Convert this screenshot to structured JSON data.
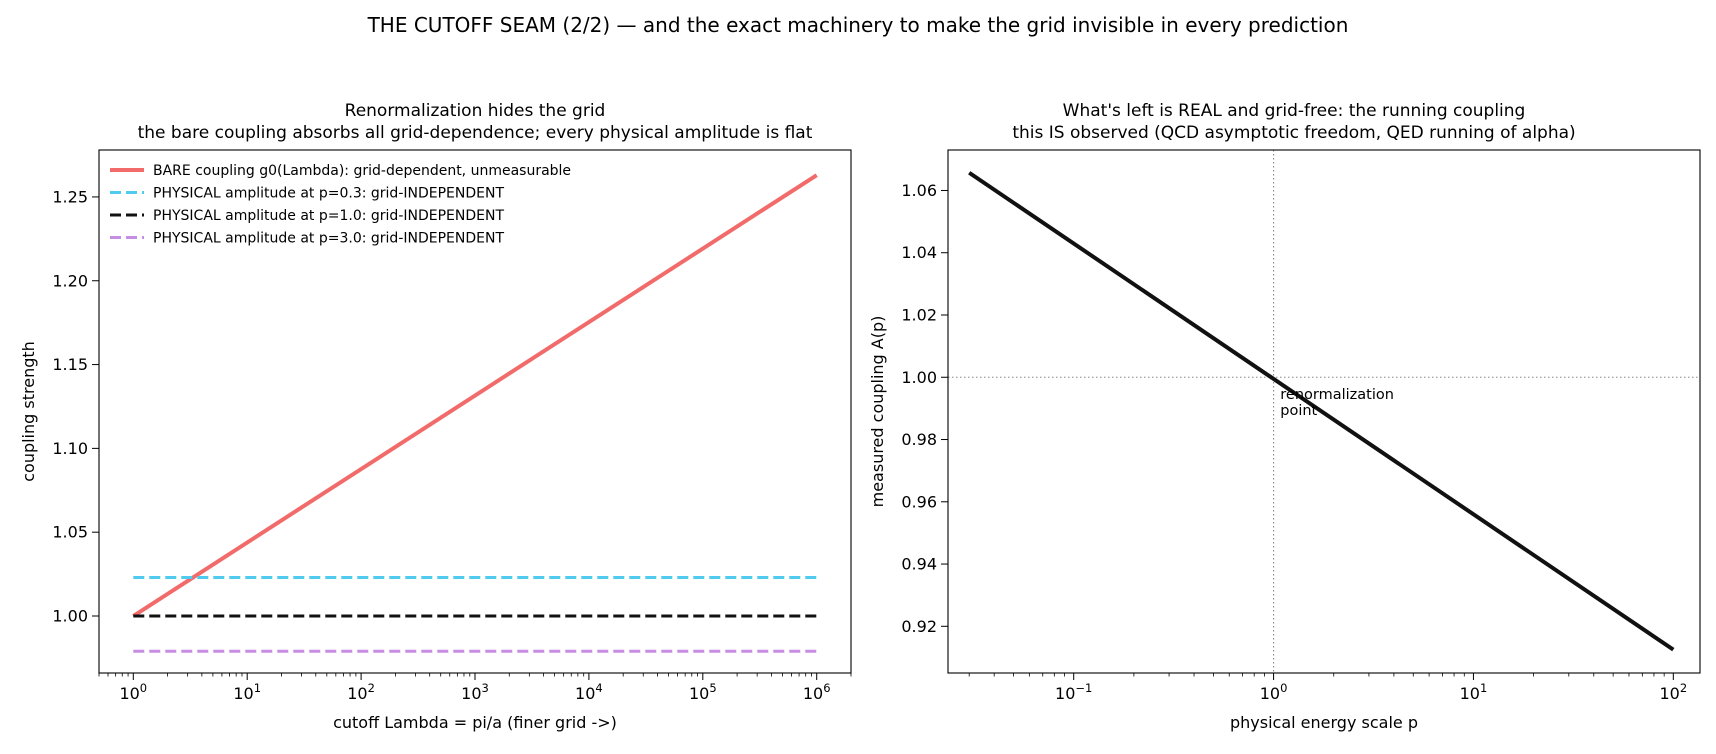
{
  "suptitle": "THE CUTOFF SEAM (2/2) — and the exact machinery to make the grid invisible in every prediction",
  "chart_data": [
    {
      "type": "line",
      "title_line1": "Renormalization hides the grid",
      "title_line2": "the bare coupling absorbs all grid-dependence; every physical amplitude is flat",
      "xlabel": "cutoff  Lambda = pi/a   (finer grid ->)",
      "ylabel": "coupling strength",
      "xscale": "log",
      "xlim": [
        0.5,
        2000000
      ],
      "ylim": [
        0.966,
        1.278
      ],
      "xticks": [
        {
          "value": 1,
          "base": "10",
          "exp": "0"
        },
        {
          "value": 10,
          "base": "10",
          "exp": "1"
        },
        {
          "value": 100,
          "base": "10",
          "exp": "2"
        },
        {
          "value": 1000,
          "base": "10",
          "exp": "3"
        },
        {
          "value": 10000,
          "base": "10",
          "exp": "4"
        },
        {
          "value": 100000,
          "base": "10",
          "exp": "5"
        },
        {
          "value": 1000000,
          "base": "10",
          "exp": "6"
        }
      ],
      "yticks": [
        {
          "value": 1.0,
          "label": "1.00"
        },
        {
          "value": 1.05,
          "label": "1.05"
        },
        {
          "value": 1.1,
          "label": "1.10"
        },
        {
          "value": 1.15,
          "label": "1.15"
        },
        {
          "value": 1.2,
          "label": "1.20"
        },
        {
          "value": 1.25,
          "label": "1.25"
        }
      ],
      "grid": false,
      "legend_position": "upper-left",
      "series": [
        {
          "name": "BARE coupling g0(Lambda): grid-dependent, unmeasurable",
          "color": "#f26b6b",
          "dash": "solid",
          "x": [
            1,
            1000000
          ],
          "y": [
            1.0,
            1.263
          ]
        },
        {
          "name": "PHYSICAL amplitude at p=0.3: grid-INDEPENDENT",
          "color": "#4fcbef",
          "dash": "dashed",
          "x": [
            1,
            1000000
          ],
          "y": [
            1.023,
            1.023
          ]
        },
        {
          "name": "PHYSICAL amplitude at p=1.0: grid-INDEPENDENT",
          "color": "#111111",
          "dash": "dashed",
          "x": [
            1,
            1000000
          ],
          "y": [
            1.0,
            1.0
          ]
        },
        {
          "name": "PHYSICAL amplitude at p=3.0: grid-INDEPENDENT",
          "color": "#c58ee2",
          "dash": "dashed",
          "x": [
            1,
            1000000
          ],
          "y": [
            0.979,
            0.979
          ]
        }
      ]
    },
    {
      "type": "line",
      "title_line1": "What's left is REAL and grid-free: the running coupling",
      "title_line2": "this IS observed (QCD asymptotic freedom, QED running of alpha)",
      "xlabel": "physical energy scale  p",
      "ylabel": "measured coupling  A(p)",
      "xscale": "log",
      "xlim": [
        0.0235,
        136
      ],
      "ylim": [
        0.905,
        1.073
      ],
      "xticks": [
        {
          "value": 0.1,
          "base": "10",
          "exp": "−1"
        },
        {
          "value": 1,
          "base": "10",
          "exp": "0"
        },
        {
          "value": 10,
          "base": "10",
          "exp": "1"
        },
        {
          "value": 100,
          "base": "10",
          "exp": "2"
        }
      ],
      "yticks": [
        {
          "value": 0.92,
          "label": "0.92"
        },
        {
          "value": 0.94,
          "label": "0.94"
        },
        {
          "value": 0.96,
          "label": "0.96"
        },
        {
          "value": 0.98,
          "label": "0.98"
        },
        {
          "value": 1.0,
          "label": "1.00"
        },
        {
          "value": 1.02,
          "label": "1.02"
        },
        {
          "value": 1.04,
          "label": "1.04"
        },
        {
          "value": 1.06,
          "label": "1.06"
        }
      ],
      "grid": false,
      "reference_lines": {
        "x": 1.0,
        "y": 1.0,
        "style": "dotted",
        "color": "#888888"
      },
      "annotation": {
        "lines": [
          "renormalization",
          "point"
        ],
        "x": 1.08,
        "y": 0.993,
        "color": "#555555"
      },
      "series": [
        {
          "color": "#111111",
          "dash": "solid",
          "x": [
            0.03,
            100
          ],
          "y": [
            1.0657,
            0.9125
          ]
        }
      ]
    }
  ]
}
